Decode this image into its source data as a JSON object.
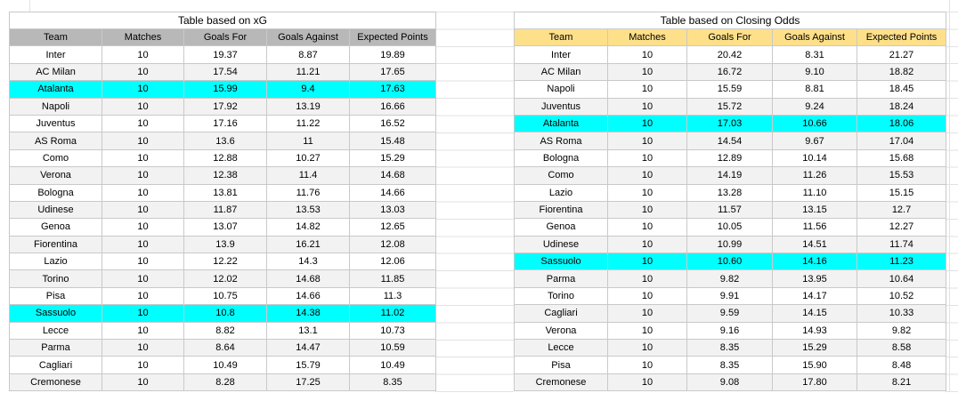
{
  "canvas": {
    "background": "#ffffff",
    "colors": {
      "xg_header_bg": "#b8b8b8",
      "odds_header_bg": "#ffe08a",
      "highlight_cyan": "#00ffff",
      "row_stripe": "#f2f2f2",
      "gridline": "#c9c9c9",
      "faint_gridline": "#e2e2e2",
      "text": "#000000"
    }
  },
  "tables": [
    {
      "id": "xg",
      "title": "Table based on xG",
      "header_bg": "#b8b8b8",
      "columns": [
        "Team",
        "Matches",
        "Goals For",
        "Goals Against",
        "Expected Points"
      ],
      "rows": [
        {
          "team": "Inter",
          "matches": "10",
          "goals_for": "19.37",
          "goals_against": "8.87",
          "expected_points": "19.89",
          "highlight": false
        },
        {
          "team": "AC Milan",
          "matches": "10",
          "goals_for": "17.54",
          "goals_against": "11.21",
          "expected_points": "17.65",
          "highlight": false
        },
        {
          "team": "Atalanta",
          "matches": "10",
          "goals_for": "15.99",
          "goals_against": "9.4",
          "expected_points": "17.63",
          "highlight": true
        },
        {
          "team": "Napoli",
          "matches": "10",
          "goals_for": "17.92",
          "goals_against": "13.19",
          "expected_points": "16.66",
          "highlight": false
        },
        {
          "team": "Juventus",
          "matches": "10",
          "goals_for": "17.16",
          "goals_against": "11.22",
          "expected_points": "16.52",
          "highlight": false
        },
        {
          "team": "AS Roma",
          "matches": "10",
          "goals_for": "13.6",
          "goals_against": "11",
          "expected_points": "15.48",
          "highlight": false
        },
        {
          "team": "Como",
          "matches": "10",
          "goals_for": "12.88",
          "goals_against": "10.27",
          "expected_points": "15.29",
          "highlight": false
        },
        {
          "team": "Verona",
          "matches": "10",
          "goals_for": "12.38",
          "goals_against": "11.4",
          "expected_points": "14.68",
          "highlight": false
        },
        {
          "team": "Bologna",
          "matches": "10",
          "goals_for": "13.81",
          "goals_against": "11.76",
          "expected_points": "14.66",
          "highlight": false
        },
        {
          "team": "Udinese",
          "matches": "10",
          "goals_for": "11.87",
          "goals_against": "13.53",
          "expected_points": "13.03",
          "highlight": false
        },
        {
          "team": "Genoa",
          "matches": "10",
          "goals_for": "13.07",
          "goals_against": "14.82",
          "expected_points": "12.65",
          "highlight": false
        },
        {
          "team": "Fiorentina",
          "matches": "10",
          "goals_for": "13.9",
          "goals_against": "16.21",
          "expected_points": "12.08",
          "highlight": false
        },
        {
          "team": "Lazio",
          "matches": "10",
          "goals_for": "12.22",
          "goals_against": "14.3",
          "expected_points": "12.06",
          "highlight": false
        },
        {
          "team": "Torino",
          "matches": "10",
          "goals_for": "12.02",
          "goals_against": "14.68",
          "expected_points": "11.85",
          "highlight": false
        },
        {
          "team": "Pisa",
          "matches": "10",
          "goals_for": "10.75",
          "goals_against": "14.66",
          "expected_points": "11.3",
          "highlight": false
        },
        {
          "team": "Sassuolo",
          "matches": "10",
          "goals_for": "10.8",
          "goals_against": "14.38",
          "expected_points": "11.02",
          "highlight": true
        },
        {
          "team": "Lecce",
          "matches": "10",
          "goals_for": "8.82",
          "goals_against": "13.1",
          "expected_points": "10.73",
          "highlight": false
        },
        {
          "team": "Parma",
          "matches": "10",
          "goals_for": "8.64",
          "goals_against": "14.47",
          "expected_points": "10.59",
          "highlight": false
        },
        {
          "team": "Cagliari",
          "matches": "10",
          "goals_for": "10.49",
          "goals_against": "15.79",
          "expected_points": "10.49",
          "highlight": false
        },
        {
          "team": "Cremonese",
          "matches": "10",
          "goals_for": "8.28",
          "goals_against": "17.25",
          "expected_points": "8.35",
          "highlight": false
        }
      ]
    },
    {
      "id": "odds",
      "title": "Table based on Closing Odds",
      "header_bg": "#ffe08a",
      "columns": [
        "Team",
        "Matches",
        "Goals For",
        "Goals Against",
        "Expected Points"
      ],
      "rows": [
        {
          "team": "Inter",
          "matches": "10",
          "goals_for": "20.42",
          "goals_against": "8.31",
          "expected_points": "21.27",
          "highlight": false
        },
        {
          "team": "AC Milan",
          "matches": "10",
          "goals_for": "16.72",
          "goals_against": "9.10",
          "expected_points": "18.82",
          "highlight": false
        },
        {
          "team": "Napoli",
          "matches": "10",
          "goals_for": "15.59",
          "goals_against": "8.81",
          "expected_points": "18.45",
          "highlight": false
        },
        {
          "team": "Juventus",
          "matches": "10",
          "goals_for": "15.72",
          "goals_against": "9.24",
          "expected_points": "18.24",
          "highlight": false
        },
        {
          "team": "Atalanta",
          "matches": "10",
          "goals_for": "17.03",
          "goals_against": "10.66",
          "expected_points": "18.06",
          "highlight": true
        },
        {
          "team": "AS Roma",
          "matches": "10",
          "goals_for": "14.54",
          "goals_against": "9.67",
          "expected_points": "17.04",
          "highlight": false
        },
        {
          "team": "Bologna",
          "matches": "10",
          "goals_for": "12.89",
          "goals_against": "10.14",
          "expected_points": "15.68",
          "highlight": false
        },
        {
          "team": "Como",
          "matches": "10",
          "goals_for": "14.19",
          "goals_against": "11.26",
          "expected_points": "15.53",
          "highlight": false
        },
        {
          "team": "Lazio",
          "matches": "10",
          "goals_for": "13.28",
          "goals_against": "11.10",
          "expected_points": "15.15",
          "highlight": false
        },
        {
          "team": "Fiorentina",
          "matches": "10",
          "goals_for": "11.57",
          "goals_against": "13.15",
          "expected_points": "12.7",
          "highlight": false
        },
        {
          "team": "Genoa",
          "matches": "10",
          "goals_for": "10.05",
          "goals_against": "11.56",
          "expected_points": "12.27",
          "highlight": false
        },
        {
          "team": "Udinese",
          "matches": "10",
          "goals_for": "10.99",
          "goals_against": "14.51",
          "expected_points": "11.74",
          "highlight": false
        },
        {
          "team": "Sassuolo",
          "matches": "10",
          "goals_for": "10.60",
          "goals_against": "14.16",
          "expected_points": "11.23",
          "highlight": true
        },
        {
          "team": "Parma",
          "matches": "10",
          "goals_for": "9.82",
          "goals_against": "13.95",
          "expected_points": "10.64",
          "highlight": false
        },
        {
          "team": "Torino",
          "matches": "10",
          "goals_for": "9.91",
          "goals_against": "14.17",
          "expected_points": "10.52",
          "highlight": false
        },
        {
          "team": "Cagliari",
          "matches": "10",
          "goals_for": "9.59",
          "goals_against": "14.15",
          "expected_points": "10.33",
          "highlight": false
        },
        {
          "team": "Verona",
          "matches": "10",
          "goals_for": "9.16",
          "goals_against": "14.93",
          "expected_points": "9.82",
          "highlight": false
        },
        {
          "team": "Lecce",
          "matches": "10",
          "goals_for": "8.35",
          "goals_against": "15.29",
          "expected_points": "8.58",
          "highlight": false
        },
        {
          "team": "Pisa",
          "matches": "10",
          "goals_for": "8.35",
          "goals_against": "15.90",
          "expected_points": "8.48",
          "highlight": false
        },
        {
          "team": "Cremonese",
          "matches": "10",
          "goals_for": "9.08",
          "goals_against": "17.80",
          "expected_points": "8.21",
          "highlight": false
        }
      ]
    }
  ]
}
